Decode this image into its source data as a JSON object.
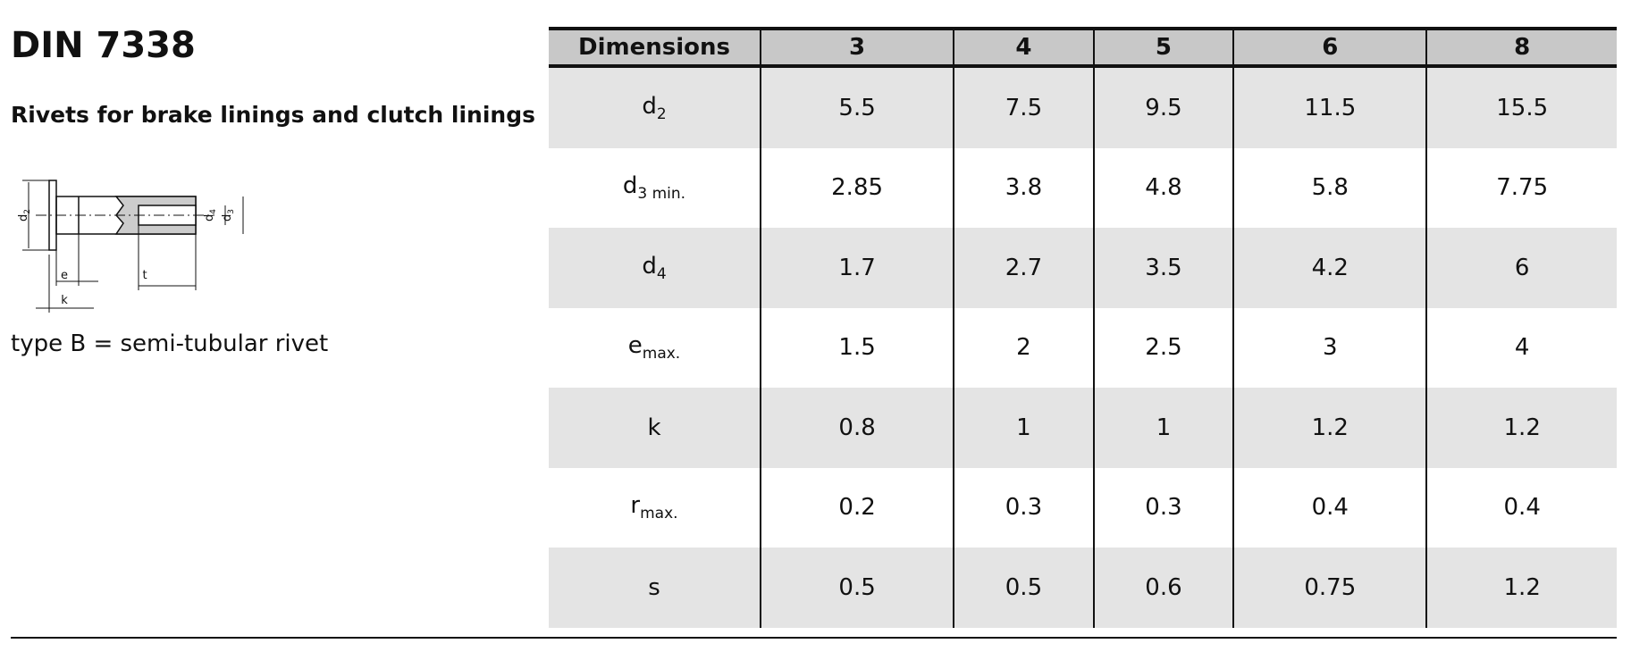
{
  "header": {
    "title": "DIN 7338",
    "subtitle": "Rivets for brake linings and clutch linings"
  },
  "diagram": {
    "labels": [
      {
        "main": "d",
        "sub": "2"
      },
      {
        "main": "d",
        "sub": "4"
      },
      {
        "main": "d",
        "sub": "3"
      },
      {
        "main": "e"
      },
      {
        "main": "t"
      },
      {
        "main": "k"
      }
    ],
    "caption": "type B = semi-tubular rivet"
  },
  "table": {
    "columns": [
      "Dimensions",
      "3",
      "4",
      "5",
      "6",
      "8"
    ],
    "rows": [
      [
        {
          "main": "d",
          "sub": "2"
        },
        "5.5",
        "7.5",
        "9.5",
        "11.5",
        "15.5"
      ],
      [
        {
          "main": "d",
          "sub": "3 min."
        },
        "2.85",
        "3.8",
        "4.8",
        "5.8",
        "7.75"
      ],
      [
        {
          "main": "d",
          "sub": "4"
        },
        "1.7",
        "2.7",
        "3.5",
        "4.2",
        "6"
      ],
      [
        {
          "main": "e",
          "sub": "max."
        },
        "1.5",
        "2",
        "2.5",
        "3",
        "4"
      ],
      [
        {
          "main": "k"
        },
        "0.8",
        "1",
        "1",
        "1.2",
        "1.2"
      ],
      [
        {
          "main": "r",
          "sub": "max."
        },
        "0.2",
        "0.3",
        "0.3",
        "0.4",
        "0.4"
      ],
      [
        {
          "main": "s"
        },
        "0.5",
        "0.5",
        "0.6",
        "0.75",
        "1.2"
      ]
    ]
  }
}
